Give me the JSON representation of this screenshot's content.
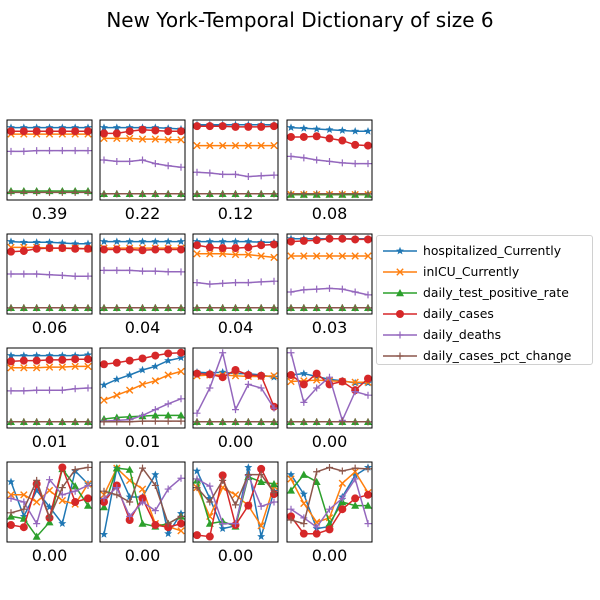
{
  "title": "New York-Temporal Dictionary of size 6",
  "legend": [
    {
      "label": "hospitalized_Currently",
      "color": "#1f77b4",
      "marker": "star"
    },
    {
      "label": "inICU_Currently",
      "color": "#ff7f0e",
      "marker": "x"
    },
    {
      "label": "daily_test_positive_rate",
      "color": "#2ca02c",
      "marker": "triangle"
    },
    {
      "label": "daily_cases",
      "color": "#d62728",
      "marker": "circle"
    },
    {
      "label": "daily_deaths",
      "color": "#9467bd",
      "marker": "plus"
    },
    {
      "label": "daily_cases_pct_change",
      "color": "#8c564b",
      "marker": "plus"
    }
  ],
  "chart_data": {
    "type": "line",
    "grid": false,
    "legend_position": "right",
    "x": [
      0,
      1,
      2,
      3,
      4,
      5,
      6
    ],
    "ylim": [
      0,
      1
    ],
    "series_order": [
      "hospitalized_Currently",
      "inICU_Currently",
      "daily_test_positive_rate",
      "daily_cases",
      "daily_deaths",
      "daily_cases_pct_change"
    ],
    "subplots": [
      {
        "label": "0.39",
        "values": [
          [
            0.95,
            0.95,
            0.95,
            0.95,
            0.95,
            0.95,
            0.95
          ],
          [
            0.86,
            0.86,
            0.86,
            0.86,
            0.86,
            0.86,
            0.86
          ],
          [
            0.07,
            0.07,
            0.07,
            0.07,
            0.07,
            0.07,
            0.07
          ],
          [
            0.9,
            0.9,
            0.9,
            0.9,
            0.9,
            0.9,
            0.9
          ],
          [
            0.62,
            0.62,
            0.63,
            0.63,
            0.63,
            0.63,
            0.63
          ],
          [
            0.05,
            0.05,
            0.05,
            0.05,
            0.05,
            0.05,
            0.05
          ]
        ]
      },
      {
        "label": "0.22",
        "values": [
          [
            0.95,
            0.95,
            0.95,
            0.95,
            0.95,
            0.94,
            0.93
          ],
          [
            0.8,
            0.8,
            0.8,
            0.79,
            0.79,
            0.78,
            0.78
          ],
          [
            0.03,
            0.03,
            0.03,
            0.03,
            0.03,
            0.03,
            0.03
          ],
          [
            0.87,
            0.87,
            0.9,
            0.92,
            0.91,
            0.9,
            0.9
          ],
          [
            0.5,
            0.48,
            0.48,
            0.5,
            0.45,
            0.42,
            0.4
          ],
          [
            0.03,
            0.03,
            0.03,
            0.03,
            0.03,
            0.03,
            0.03
          ]
        ]
      },
      {
        "label": "0.12",
        "values": [
          [
            0.99,
            0.99,
            0.99,
            0.99,
            0.99,
            0.99,
            0.99
          ],
          [
            0.7,
            0.7,
            0.7,
            0.7,
            0.7,
            0.7,
            0.7
          ],
          [
            0.03,
            0.03,
            0.03,
            0.03,
            0.03,
            0.03,
            0.03
          ],
          [
            0.97,
            0.97,
            0.97,
            0.96,
            0.96,
            0.96,
            0.97
          ],
          [
            0.33,
            0.32,
            0.3,
            0.3,
            0.27,
            0.28,
            0.29
          ],
          [
            0.03,
            0.03,
            0.03,
            0.03,
            0.03,
            0.03,
            0.03
          ]
        ]
      },
      {
        "label": "0.08",
        "values": [
          [
            0.95,
            0.94,
            0.93,
            0.92,
            0.91,
            0.9,
            0.9
          ],
          [
            0.02,
            0.02,
            0.02,
            0.02,
            0.02,
            0.02,
            0.02
          ],
          [
            0.02,
            0.02,
            0.02,
            0.02,
            0.02,
            0.02,
            0.02
          ],
          [
            0.82,
            0.82,
            0.83,
            0.8,
            0.77,
            0.71,
            0.7
          ],
          [
            0.55,
            0.53,
            0.5,
            0.48,
            0.46,
            0.45,
            0.45
          ],
          [
            0.03,
            0.03,
            0.03,
            0.03,
            0.03,
            0.03,
            0.03
          ]
        ]
      },
      {
        "label": "0.06",
        "values": [
          [
            0.95,
            0.94,
            0.94,
            0.94,
            0.93,
            0.92,
            0.92
          ],
          [
            0.87,
            0.87,
            0.87,
            0.86,
            0.86,
            0.86,
            0.85
          ],
          [
            0.03,
            0.03,
            0.03,
            0.03,
            0.03,
            0.03,
            0.03
          ],
          [
            0.81,
            0.82,
            0.85,
            0.86,
            0.86,
            0.85,
            0.85
          ],
          [
            0.5,
            0.5,
            0.5,
            0.49,
            0.48,
            0.47,
            0.47
          ],
          [
            0.03,
            0.03,
            0.03,
            0.03,
            0.03,
            0.03,
            0.03
          ]
        ]
      },
      {
        "label": "0.04",
        "values": [
          [
            0.95,
            0.95,
            0.95,
            0.95,
            0.95,
            0.95,
            0.95
          ],
          [
            0.86,
            0.86,
            0.86,
            0.86,
            0.86,
            0.86,
            0.86
          ],
          [
            0.03,
            0.03,
            0.03,
            0.03,
            0.03,
            0.03,
            0.03
          ],
          [
            0.84,
            0.84,
            0.84,
            0.83,
            0.84,
            0.84,
            0.84
          ],
          [
            0.55,
            0.55,
            0.55,
            0.54,
            0.54,
            0.53,
            0.53
          ],
          [
            0.03,
            0.03,
            0.03,
            0.03,
            0.03,
            0.03,
            0.03
          ]
        ]
      },
      {
        "label": "0.04",
        "values": [
          [
            0.95,
            0.95,
            0.95,
            0.95,
            0.95,
            0.94,
            0.94
          ],
          [
            0.78,
            0.78,
            0.78,
            0.77,
            0.77,
            0.75,
            0.73
          ],
          [
            0.03,
            0.03,
            0.03,
            0.03,
            0.03,
            0.03,
            0.03
          ],
          [
            0.9,
            0.87,
            0.86,
            0.86,
            0.87,
            0.9,
            0.91
          ],
          [
            0.38,
            0.36,
            0.37,
            0.38,
            0.38,
            0.39,
            0.4
          ],
          [
            0.03,
            0.03,
            0.03,
            0.03,
            0.03,
            0.03,
            0.03
          ]
        ]
      },
      {
        "label": "0.03",
        "values": [
          [
            0.99,
            0.99,
            0.99,
            0.99,
            0.99,
            0.99,
            0.99
          ],
          [
            0.75,
            0.75,
            0.75,
            0.75,
            0.75,
            0.75,
            0.75
          ],
          [
            0.03,
            0.03,
            0.03,
            0.03,
            0.03,
            0.03,
            0.03
          ],
          [
            0.95,
            0.96,
            0.97,
            0.99,
            0.99,
            0.98,
            0.98
          ],
          [
            0.25,
            0.28,
            0.29,
            0.3,
            0.29,
            0.25,
            0.21
          ],
          [
            0.03,
            0.03,
            0.03,
            0.03,
            0.03,
            0.03,
            0.03
          ]
        ]
      },
      {
        "label": "0.01",
        "values": [
          [
            0.95,
            0.95,
            0.95,
            0.95,
            0.95,
            0.95,
            0.96
          ],
          [
            0.78,
            0.78,
            0.78,
            0.79,
            0.79,
            0.8,
            0.8
          ],
          [
            0.03,
            0.03,
            0.03,
            0.03,
            0.03,
            0.03,
            0.03
          ],
          [
            0.87,
            0.88,
            0.88,
            0.89,
            0.89,
            0.9,
            0.9
          ],
          [
            0.46,
            0.46,
            0.47,
            0.47,
            0.47,
            0.49,
            0.5
          ],
          [
            0.03,
            0.03,
            0.03,
            0.03,
            0.03,
            0.03,
            0.03
          ]
        ]
      },
      {
        "label": "0.01",
        "values": [
          [
            0.54,
            0.62,
            0.68,
            0.75,
            0.8,
            0.88,
            0.92
          ],
          [
            0.33,
            0.4,
            0.47,
            0.55,
            0.6,
            0.68,
            0.73
          ],
          [
            0.07,
            0.09,
            0.1,
            0.11,
            0.12,
            0.12,
            0.12
          ],
          [
            0.83,
            0.85,
            0.88,
            0.91,
            0.95,
            0.98,
            0.99
          ],
          [
            0.04,
            0.05,
            0.06,
            0.12,
            0.2,
            0.28,
            0.35
          ],
          [
            0.03,
            0.03,
            0.03,
            0.04,
            0.04,
            0.04,
            0.04
          ]
        ]
      },
      {
        "label": "0.00",
        "values": [
          [
            0.72,
            0.71,
            0.72,
            0.7,
            0.7,
            0.68,
            0.65
          ],
          [
            0.67,
            0.68,
            0.68,
            0.67,
            0.66,
            0.66,
            0.67
          ],
          [
            0.03,
            0.03,
            0.03,
            0.03,
            0.03,
            0.03,
            0.03
          ],
          [
            0.7,
            0.69,
            0.65,
            0.75,
            0.68,
            0.67,
            0.24
          ],
          [
            0.15,
            0.5,
            0.99,
            0.2,
            0.55,
            0.5,
            0.22
          ],
          [
            0.03,
            0.03,
            0.03,
            0.03,
            0.03,
            0.03,
            0.03
          ]
        ]
      },
      {
        "label": "0.00",
        "values": [
          [
            0.68,
            0.7,
            0.66,
            0.62,
            0.6,
            0.57,
            0.57
          ],
          [
            0.59,
            0.6,
            0.61,
            0.6,
            0.59,
            0.58,
            0.58
          ],
          [
            0.03,
            0.03,
            0.03,
            0.03,
            0.03,
            0.03,
            0.03
          ],
          [
            0.68,
            0.55,
            0.7,
            0.55,
            0.59,
            0.47,
            0.63
          ],
          [
            0.99,
            0.3,
            0.5,
            0.65,
            0.05,
            0.45,
            0.4
          ],
          [
            0.03,
            0.03,
            0.03,
            0.03,
            0.03,
            0.03,
            0.03
          ]
        ]
      },
      {
        "label": "0.00",
        "values": [
          [
            0.78,
            0.3,
            0.66,
            0.43,
            0.2,
            0.93,
            0.75
          ],
          [
            0.6,
            0.6,
            0.5,
            0.66,
            0.52,
            0.47,
            0.75
          ],
          [
            0.3,
            0.27,
            0.02,
            0.22,
            0.96,
            0.72,
            0.45
          ],
          [
            0.18,
            0.15,
            0.75,
            0.28,
            0.98,
            0.5,
            0.55
          ],
          [
            0.55,
            0.5,
            0.2,
            0.81,
            0.6,
            0.65,
            0.73
          ],
          [
            0.35,
            0.4,
            0.8,
            0.28,
            0.7,
            0.95,
            0.98
          ]
        ]
      },
      {
        "label": "0.00",
        "values": [
          [
            0.05,
            0.97,
            0.57,
            0.57,
            0.88,
            0.06,
            0.34
          ],
          [
            0.6,
            0.97,
            0.8,
            0.68,
            0.2,
            0.16,
            0.1
          ],
          [
            0.43,
            0.97,
            0.95,
            0.2,
            0.16,
            0.2,
            0.3
          ],
          [
            0.5,
            0.73,
            0.25,
            0.55,
            0.18,
            0.15,
            0.2
          ],
          [
            0.55,
            0.7,
            0.3,
            0.5,
            0.38,
            0.68,
            0.83
          ],
          [
            0.65,
            0.6,
            0.5,
            0.97,
            0.73,
            0.2,
            0.3
          ]
        ]
      },
      {
        "label": "0.00",
        "values": [
          [
            0.93,
            0.55,
            0.13,
            0.17,
            0.98,
            0.02,
            0.65
          ],
          [
            0.7,
            0.3,
            0.7,
            0.6,
            0.45,
            0.17,
            0.72
          ],
          [
            0.8,
            0.2,
            0.23,
            0.16,
            0.85,
            0.78,
            0.75
          ],
          [
            0.04,
            0.02,
            0.87,
            0.18,
            0.45,
            0.96,
            0.61
          ],
          [
            0.82,
            0.72,
            0.2,
            0.2,
            0.87,
            0.44,
            0.5
          ],
          [
            0.7,
            0.5,
            0.8,
            0.46,
            0.88,
            0.88,
            0.63
          ]
        ]
      },
      {
        "label": "0.00",
        "values": [
          [
            0.88,
            0.61,
            0.13,
            0.16,
            0.57,
            0.87,
            0.98
          ],
          [
            0.82,
            0.48,
            0.22,
            0.28,
            0.76,
            0.92,
            0.63
          ],
          [
            0.66,
            0.88,
            0.78,
            0.2,
            0.5,
            0.45,
            0.45
          ],
          [
            0.3,
            0.06,
            0.06,
            0.12,
            0.4,
            0.55,
            0.6
          ],
          [
            0.4,
            0.28,
            0.15,
            0.4,
            0.55,
            0.82,
            0.2
          ],
          [
            0.25,
            0.2,
            0.92,
            0.98,
            0.93,
            0.97,
            0.96
          ]
        ]
      }
    ]
  }
}
